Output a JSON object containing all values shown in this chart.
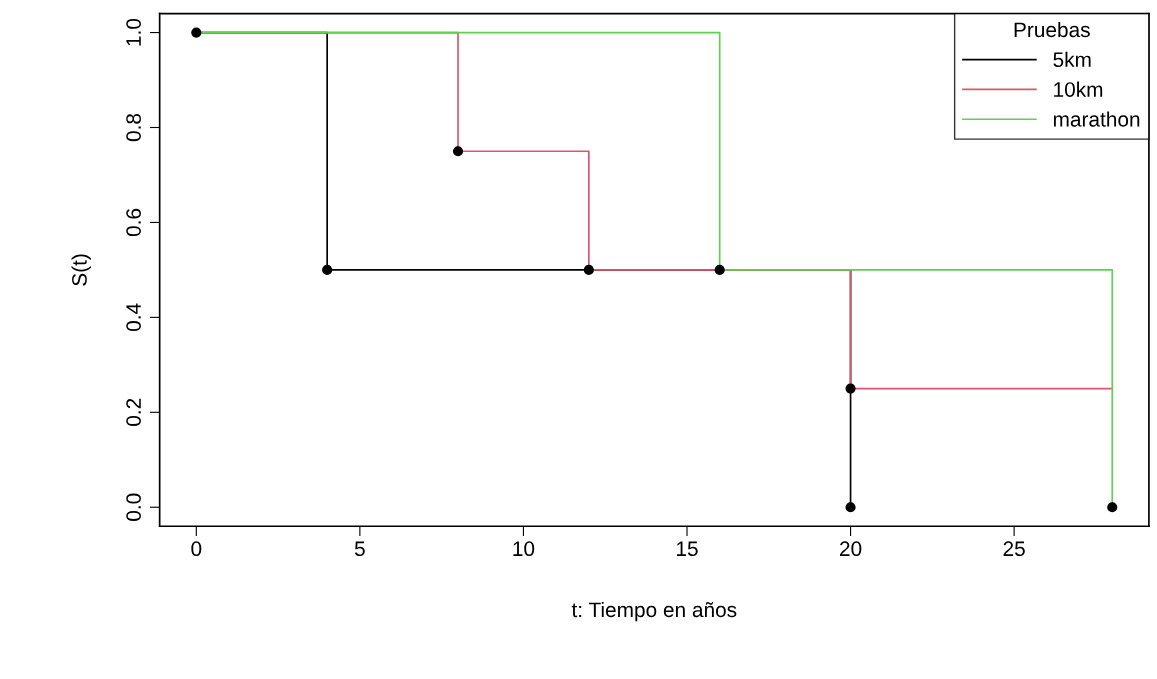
{
  "chart_data": {
    "type": "step",
    "xlabel": "t: Tiempo en años",
    "ylabel": "S(t)",
    "legend_title": "Pruebas",
    "legend": "top right",
    "grid": false,
    "xlim": [
      -1.12,
      29.12
    ],
    "ylim": [
      -0.04,
      1.04
    ],
    "xticks": [
      0,
      5,
      10,
      15,
      20,
      25
    ],
    "yticks": [
      {
        "value": 0,
        "label": "0.0"
      },
      {
        "value": 0.2,
        "label": "0.2"
      },
      {
        "value": 0.4,
        "label": "0.4"
      },
      {
        "value": 0.6,
        "label": "0.6"
      },
      {
        "value": 0.8,
        "label": "0.8"
      },
      {
        "value": 1,
        "label": "1.0"
      }
    ],
    "series": [
      {
        "name": "5km",
        "color": "#000000",
        "x": [
          0,
          4,
          20
        ],
        "values": [
          1,
          0.5,
          0
        ]
      },
      {
        "name": "10km",
        "color": "#df536b",
        "x": [
          0,
          8,
          12,
          20,
          28
        ],
        "values": [
          1,
          0.75,
          0.5,
          0.25,
          0.25
        ]
      },
      {
        "name": "marathon",
        "color": "#61d04f",
        "x": [
          0,
          16,
          28
        ],
        "values": [
          1,
          0.5,
          0
        ]
      },
      {
        "type": "scatter",
        "color": "#000000",
        "marker": "circle",
        "x": [
          0,
          4,
          8,
          12,
          16,
          20,
          20,
          28
        ],
        "values": [
          1,
          0.5,
          0.75,
          0.5,
          0.5,
          0.25,
          0,
          0
        ]
      }
    ]
  }
}
